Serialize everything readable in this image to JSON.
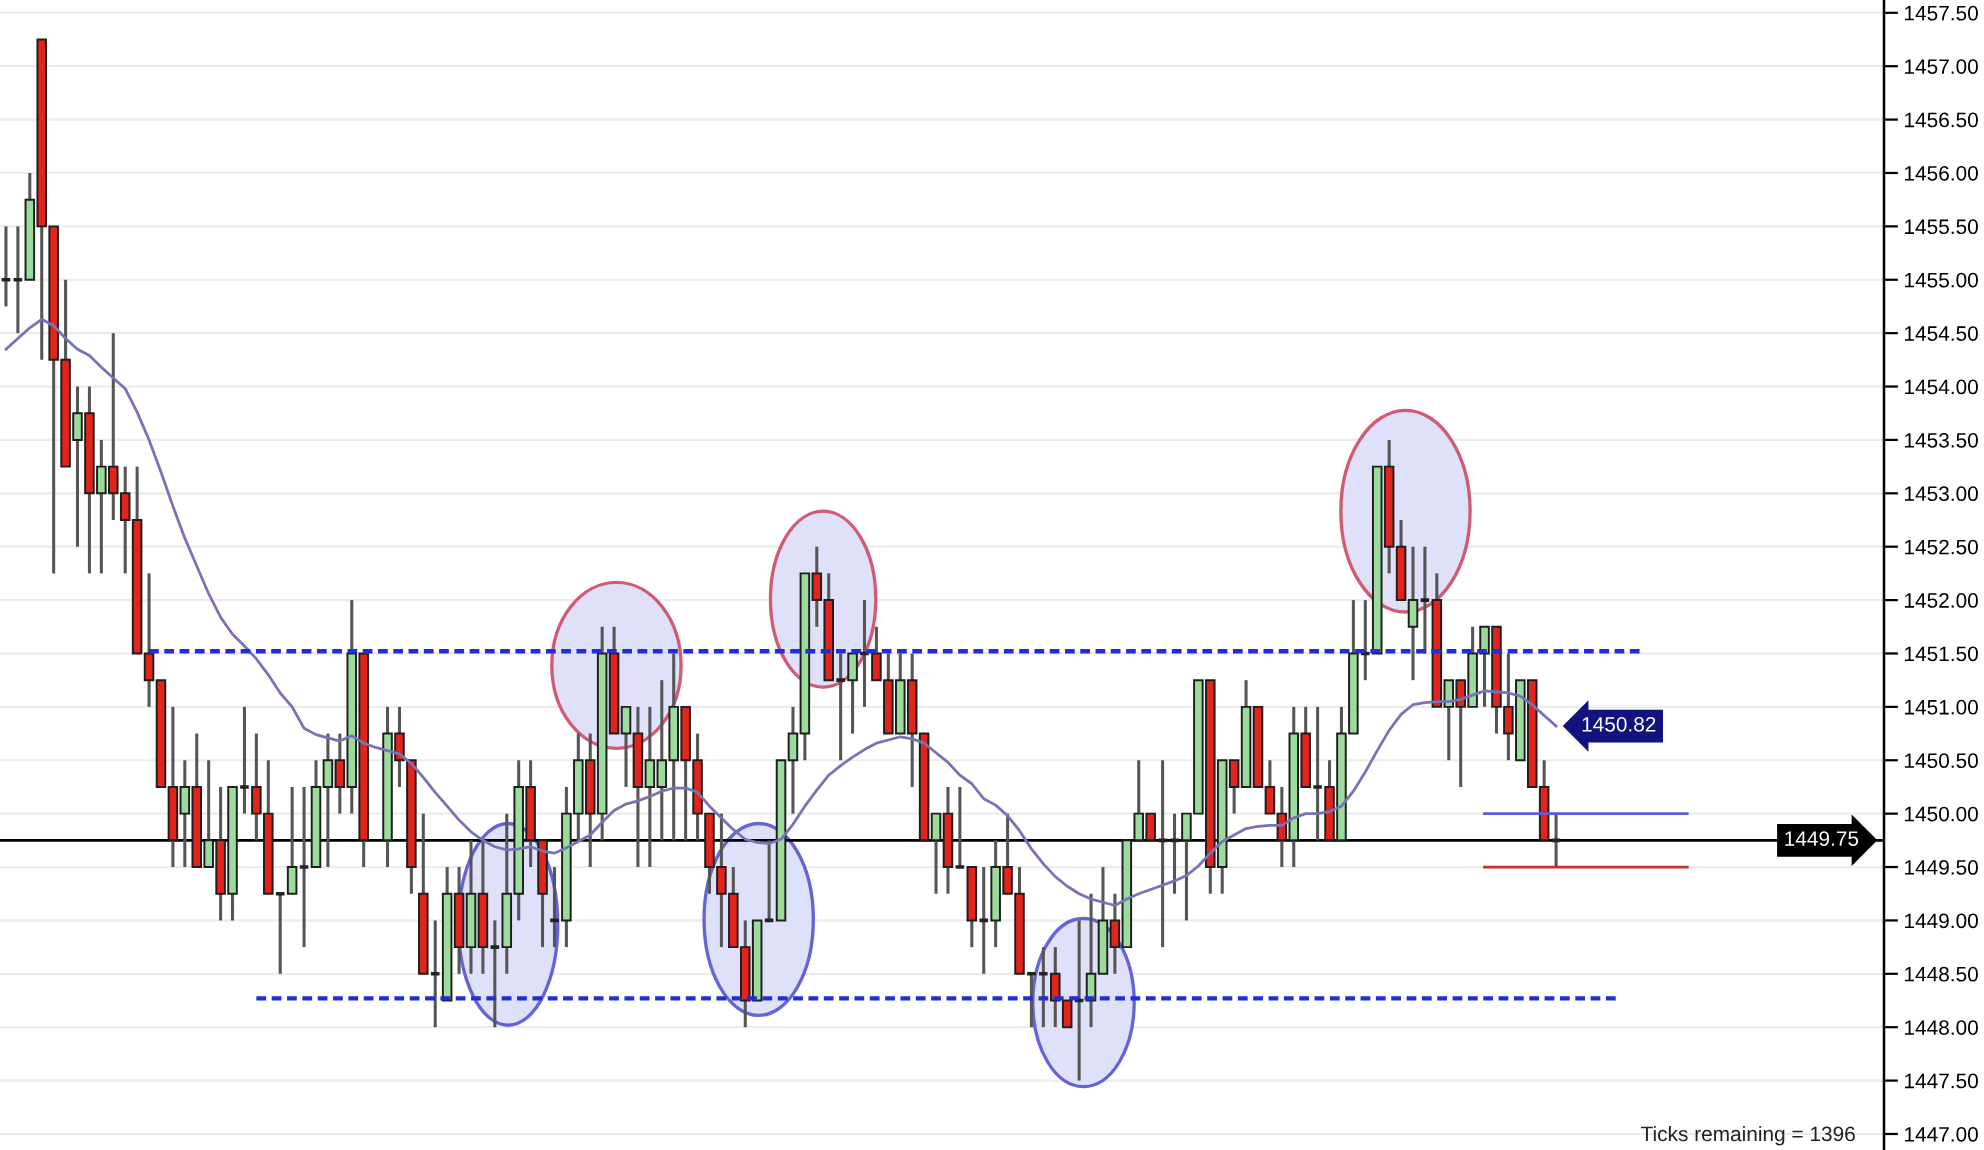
{
  "chart_data": {
    "type": "candlestick",
    "categories": [
      null,
      null,
      null,
      null,
      null,
      null,
      null,
      null,
      null,
      null,
      null,
      null,
      null,
      null,
      null,
      null,
      null,
      null,
      null,
      null,
      null,
      null,
      null,
      null,
      null,
      null,
      null,
      null,
      null,
      null,
      null,
      null,
      null,
      null,
      null,
      null,
      null,
      null,
      null,
      null,
      null,
      null,
      null,
      null,
      null,
      null,
      null,
      null,
      null,
      null,
      null,
      null,
      null,
      null,
      null,
      null,
      null,
      null,
      null,
      null,
      null,
      null,
      null,
      null,
      null,
      null,
      null,
      null,
      null,
      null,
      null,
      null,
      null,
      null,
      null,
      null,
      null,
      null,
      null,
      null,
      null,
      null,
      null,
      null,
      null,
      null,
      null,
      null,
      null,
      null,
      null,
      null,
      null,
      null,
      null,
      null,
      null,
      null,
      null,
      null,
      null,
      null,
      null,
      null,
      null,
      null,
      null,
      null,
      null,
      null,
      null,
      null,
      null,
      null,
      null,
      null,
      null,
      null,
      null,
      null,
      null,
      null,
      null,
      null,
      null,
      null,
      null,
      null,
      null,
      null,
      null,
      null,
      null,
      null,
      null,
      null,
      null,
      null,
      null,
      null,
      null,
      null,
      null,
      null,
      null,
      null,
      null,
      null,
      null,
      null,
      null,
      null,
      null,
      null,
      null,
      null,
      null,
      null
    ],
    "ohlc": [
      [
        1455.0,
        1455.5,
        1454.75,
        1455.0
      ],
      [
        1455.0,
        1455.5,
        1454.5,
        1455.0
      ],
      [
        1455.0,
        1456.0,
        1455.0,
        1455.75
      ],
      [
        1457.25,
        1457.25,
        1454.25,
        1455.5
      ],
      [
        1455.5,
        1455.5,
        1452.25,
        1454.25
      ],
      [
        1454.25,
        1455.0,
        1453.25,
        1453.25
      ],
      [
        1453.5,
        1454.0,
        1452.5,
        1453.75
      ],
      [
        1453.75,
        1454.0,
        1452.25,
        1453.0
      ],
      [
        1453.0,
        1453.5,
        1452.25,
        1453.25
      ],
      [
        1453.25,
        1454.5,
        1452.75,
        1453.0
      ],
      [
        1453.0,
        1453.25,
        1452.25,
        1452.75
      ],
      [
        1452.75,
        1453.25,
        1451.5,
        1451.5
      ],
      [
        1451.5,
        1452.25,
        1451.0,
        1451.25
      ],
      [
        1451.25,
        1451.25,
        1450.25,
        1450.25
      ],
      [
        1450.25,
        1451.0,
        1449.5,
        1449.75
      ],
      [
        1450.0,
        1450.5,
        1449.5,
        1450.25
      ],
      [
        1450.25,
        1450.75,
        1449.5,
        1449.5
      ],
      [
        1449.5,
        1450.5,
        1449.5,
        1449.75
      ],
      [
        1449.75,
        1450.25,
        1449.0,
        1449.25
      ],
      [
        1449.25,
        1450.25,
        1449.0,
        1450.25
      ],
      [
        1450.25,
        1451.0,
        1450.0,
        1450.25
      ],
      [
        1450.25,
        1450.75,
        1449.75,
        1450.0
      ],
      [
        1450.0,
        1450.5,
        1449.25,
        1449.25
      ],
      [
        1449.25,
        1449.25,
        1448.5,
        1449.25
      ],
      [
        1449.25,
        1450.25,
        1449.25,
        1449.5
      ],
      [
        1449.5,
        1450.25,
        1448.75,
        1449.5
      ],
      [
        1449.5,
        1450.5,
        1449.5,
        1450.25
      ],
      [
        1450.25,
        1450.75,
        1449.5,
        1450.5
      ],
      [
        1450.5,
        1450.75,
        1450.0,
        1450.25
      ],
      [
        1450.25,
        1452.0,
        1450.0,
        1451.5
      ],
      [
        1451.5,
        1451.5,
        1449.5,
        1449.75
      ],
      null,
      [
        1449.75,
        1451.0,
        1449.5,
        1450.75
      ],
      [
        1450.75,
        1451.0,
        1450.25,
        1450.5
      ],
      [
        1450.5,
        1450.5,
        1449.25,
        1449.5
      ],
      [
        1449.25,
        1450.0,
        1448.5,
        1448.5
      ],
      [
        1448.5,
        1449.0,
        1448.0,
        1448.5
      ],
      [
        1448.25,
        1449.5,
        1448.25,
        1449.25
      ],
      [
        1449.25,
        1449.5,
        1448.5,
        1448.75
      ],
      [
        1448.75,
        1449.75,
        1448.5,
        1449.25
      ],
      [
        1449.25,
        1449.75,
        1448.5,
        1448.75
      ],
      [
        1448.75,
        1449.0,
        1448.0,
        1448.75
      ],
      [
        1448.75,
        1450.0,
        1448.5,
        1449.25
      ],
      [
        1449.25,
        1450.5,
        1449.0,
        1450.25
      ],
      [
        1450.25,
        1450.5,
        1449.5,
        1449.75
      ],
      [
        1449.75,
        1449.75,
        1448.75,
        1449.25
      ],
      [
        1449.0,
        1449.5,
        1448.75,
        1449.0
      ],
      [
        1449.0,
        1450.25,
        1448.75,
        1450.0
      ],
      [
        1450.0,
        1450.75,
        1449.75,
        1450.5
      ],
      [
        1450.5,
        1450.75,
        1449.5,
        1450.0
      ],
      [
        1450.0,
        1451.75,
        1449.75,
        1451.5
      ],
      [
        1451.5,
        1451.75,
        1450.75,
        1450.75
      ],
      [
        1450.75,
        1451.0,
        1450.25,
        1451.0
      ],
      [
        1450.75,
        1451.0,
        1449.5,
        1450.25
      ],
      [
        1450.25,
        1451.0,
        1449.5,
        1450.5
      ],
      [
        1450.25,
        1451.25,
        1449.75,
        1450.5
      ],
      [
        1450.5,
        1451.5,
        1449.75,
        1451.0
      ],
      [
        1451.0,
        1451.0,
        1449.75,
        1450.5
      ],
      [
        1450.5,
        1450.75,
        1449.75,
        1450.0
      ],
      [
        1450.0,
        1450.0,
        1449.25,
        1449.5
      ],
      [
        1449.5,
        1450.0,
        1448.75,
        1449.25
      ],
      [
        1449.25,
        1449.5,
        1448.75,
        1448.75
      ],
      [
        1448.75,
        1449.0,
        1448.0,
        1448.25
      ],
      [
        1448.25,
        1449.0,
        1448.25,
        1449.0
      ],
      [
        1449.0,
        1449.75,
        1449.0,
        1449.0
      ],
      [
        1449.0,
        1450.5,
        1449.0,
        1450.5
      ],
      [
        1450.5,
        1451.0,
        1450.0,
        1450.75
      ],
      [
        1450.75,
        1452.25,
        1450.5,
        1452.25
      ],
      [
        1452.25,
        1452.5,
        1451.75,
        1452.0
      ],
      [
        1452.0,
        1452.25,
        1451.25,
        1451.25
      ],
      [
        1451.25,
        1451.5,
        1450.5,
        1451.25
      ],
      [
        1451.25,
        1451.5,
        1450.75,
        1451.5
      ],
      [
        1451.5,
        1452.0,
        1451.0,
        1451.5
      ],
      [
        1451.5,
        1451.75,
        1451.25,
        1451.25
      ],
      [
        1451.25,
        1451.5,
        1450.75,
        1450.75
      ],
      [
        1450.75,
        1451.5,
        1450.75,
        1451.25
      ],
      [
        1451.25,
        1451.5,
        1450.25,
        1450.75
      ],
      [
        1450.75,
        1450.75,
        1449.75,
        1449.75
      ],
      [
        1449.75,
        1450.0,
        1449.25,
        1450.0
      ],
      [
        1450.0,
        1450.25,
        1449.25,
        1449.5
      ],
      [
        1449.5,
        1450.25,
        1449.5,
        1449.5
      ],
      [
        1449.5,
        1449.5,
        1448.75,
        1449.0
      ],
      [
        1449.0,
        1449.5,
        1448.5,
        1449.0
      ],
      [
        1449.0,
        1449.75,
        1448.75,
        1449.5
      ],
      [
        1449.5,
        1450.0,
        1449.25,
        1449.25
      ],
      [
        1449.25,
        1449.5,
        1448.5,
        1448.5
      ],
      [
        1448.5,
        1448.5,
        1448.0,
        1448.5
      ],
      [
        1448.5,
        1448.75,
        1448.0,
        1448.5
      ],
      [
        1448.5,
        1448.75,
        1448.0,
        1448.25
      ],
      [
        1448.25,
        1448.25,
        1448.0,
        1448.0
      ],
      [
        1448.25,
        1449.0,
        1447.5,
        1448.25
      ],
      [
        1448.25,
        1449.25,
        1448.0,
        1448.5
      ],
      [
        1448.5,
        1449.5,
        1448.5,
        1449.0
      ],
      [
        1449.0,
        1449.25,
        1448.5,
        1448.75
      ],
      [
        1448.75,
        1449.75,
        1448.75,
        1449.75
      ],
      [
        1449.75,
        1450.5,
        1449.75,
        1450.0
      ],
      [
        1450.0,
        1450.0,
        1449.75,
        1449.75
      ],
      [
        1449.75,
        1450.5,
        1448.75,
        1449.75
      ],
      [
        1449.75,
        1450.0,
        1449.25,
        1449.75
      ],
      [
        1449.75,
        1450.0,
        1449.0,
        1450.0
      ],
      [
        1450.0,
        1451.25,
        1450.0,
        1451.25
      ],
      [
        1451.25,
        1451.25,
        1449.25,
        1449.5
      ],
      [
        1449.5,
        1450.5,
        1449.25,
        1450.5
      ],
      [
        1450.5,
        1450.5,
        1450.0,
        1450.25
      ],
      [
        1450.25,
        1451.25,
        1450.25,
        1451.0
      ],
      [
        1451.0,
        1451.0,
        1450.25,
        1450.25
      ],
      [
        1450.25,
        1450.5,
        1450.0,
        1450.0
      ],
      [
        1450.0,
        1450.25,
        1449.5,
        1449.75
      ],
      [
        1449.75,
        1451.0,
        1449.5,
        1450.75
      ],
      [
        1450.75,
        1451.0,
        1450.25,
        1450.25
      ],
      [
        1450.25,
        1451.0,
        1449.75,
        1450.25
      ],
      [
        1450.25,
        1450.5,
        1449.75,
        1449.75
      ],
      [
        1449.75,
        1451.0,
        1449.75,
        1450.75
      ],
      [
        1450.75,
        1452.0,
        1450.75,
        1451.5
      ],
      [
        1451.5,
        1452.0,
        1451.25,
        1451.5
      ],
      [
        1451.5,
        1453.25,
        1451.5,
        1453.25
      ],
      [
        1453.25,
        1453.5,
        1452.25,
        1452.5
      ],
      [
        1452.5,
        1452.75,
        1452.0,
        1452.0
      ],
      [
        1451.75,
        1452.5,
        1451.25,
        1452.0
      ],
      [
        1452.0,
        1452.5,
        1451.5,
        1452.0
      ],
      [
        1452.0,
        1452.25,
        1451.0,
        1451.0
      ],
      [
        1451.0,
        1451.25,
        1450.5,
        1451.25
      ],
      [
        1451.25,
        1451.25,
        1450.25,
        1451.0
      ],
      [
        1451.0,
        1451.75,
        1451.0,
        1451.5
      ],
      [
        1451.5,
        1451.75,
        1451.0,
        1451.75
      ],
      [
        1451.75,
        1451.75,
        1450.75,
        1451.0
      ],
      [
        1451.0,
        1451.5,
        1450.5,
        1450.75
      ],
      [
        1450.5,
        1451.25,
        1450.5,
        1451.25
      ],
      [
        1451.25,
        1451.25,
        1450.25,
        1450.25
      ],
      [
        1450.25,
        1450.5,
        1449.75,
        1449.75
      ],
      [
        1449.75,
        1450.0,
        1449.5,
        1449.75
      ],
      null,
      null,
      null,
      null,
      null,
      null,
      null,
      null,
      null,
      null,
      null,
      null,
      null,
      null,
      null,
      null,
      null,
      null,
      null,
      null,
      null,
      null,
      null,
      null,
      null,
      null,
      null
    ],
    "colors": [
      "#222222",
      "#222222",
      "#9bdb9b",
      "#e3241b",
      "#e3241b",
      "#e3241b",
      "#9bdb9b",
      "#e3241b",
      "#9bdb9b",
      "#e3241b",
      "#e3241b",
      "#e3241b",
      "#e3241b",
      "#e3241b",
      "#e3241b",
      "#9bdb9b",
      "#e3241b",
      "#9bdb9b",
      "#e3241b",
      "#9bdb9b",
      "#222222",
      "#e3241b",
      "#e3241b",
      "#222222",
      "#9bdb9b",
      "#222222",
      "#9bdb9b",
      "#9bdb9b",
      "#e3241b",
      "#9bdb9b",
      "#e3241b",
      null,
      "#9bdb9b",
      "#e3241b",
      "#e3241b",
      "#e3241b",
      "#222222",
      "#9bdb9b",
      "#e3241b",
      "#9bdb9b",
      "#e3241b",
      "#222222",
      "#9bdb9b",
      "#9bdb9b",
      "#e3241b",
      "#e3241b",
      "#222222",
      "#9bdb9b",
      "#9bdb9b",
      "#e3241b",
      "#9bdb9b",
      "#e3241b",
      "#9bdb9b",
      "#e3241b",
      "#9bdb9b",
      "#9bdb9b",
      "#9bdb9b",
      "#e3241b",
      "#e3241b",
      "#e3241b",
      "#e3241b",
      "#e3241b",
      "#e3241b",
      "#9bdb9b",
      "#222222",
      "#9bdb9b",
      "#9bdb9b",
      "#9bdb9b",
      "#e3241b",
      "#e3241b",
      "#222222",
      "#9bdb9b",
      "#222222",
      "#e3241b",
      "#e3241b",
      "#9bdb9b",
      "#e3241b",
      "#e3241b",
      "#9bdb9b",
      "#e3241b",
      "#222222",
      "#e3241b",
      "#222222",
      "#9bdb9b",
      "#e3241b",
      "#e3241b",
      "#222222",
      "#222222",
      "#e3241b",
      "#e3241b",
      "#222222",
      "#9bdb9b",
      "#9bdb9b",
      "#e3241b",
      "#9bdb9b",
      "#9bdb9b",
      "#e3241b",
      "#222222",
      "#222222",
      "#9bdb9b",
      "#9bdb9b",
      "#e3241b",
      "#9bdb9b",
      "#e3241b",
      "#9bdb9b",
      "#e3241b",
      "#e3241b",
      "#e3241b",
      "#9bdb9b",
      "#e3241b",
      "#222222",
      "#e3241b",
      "#9bdb9b",
      "#9bdb9b",
      "#222222",
      "#9bdb9b",
      "#e3241b",
      "#e3241b",
      "#9bdb9b",
      "#222222",
      "#e3241b",
      "#9bdb9b",
      "#e3241b",
      "#9bdb9b",
      "#9bdb9b",
      "#e3241b",
      "#e3241b",
      "#9bdb9b",
      "#e3241b",
      "#e3241b",
      "#222222",
      null,
      null,
      null,
      null,
      null,
      null,
      null,
      null,
      null,
      null,
      null,
      null,
      null,
      null,
      null,
      null,
      null,
      null,
      null,
      null,
      null,
      null,
      null,
      null,
      null,
      null,
      null
    ],
    "series": [
      {
        "type": "line",
        "color": "#7474b6",
        "values": [
          1454.35,
          1454.45,
          1454.55,
          1454.63,
          1454.57,
          1454.45,
          1454.35,
          1454.29,
          1454.18,
          1454.08,
          1453.98,
          1453.76,
          1453.5,
          1453.2,
          1452.88,
          1452.58,
          1452.32,
          1452.06,
          1451.84,
          1451.68,
          1451.57,
          1451.45,
          1451.3,
          1451.13,
          1451.0,
          1450.8,
          1450.74,
          1450.71,
          1450.68,
          1450.73,
          1450.66,
          1450.62,
          1450.59,
          1450.56,
          1450.47,
          1450.34,
          1450.2,
          1450.07,
          1449.94,
          1449.83,
          1449.75,
          1449.69,
          1449.66,
          1449.67,
          1449.69,
          1449.65,
          1449.63,
          1449.68,
          1449.74,
          1449.8,
          1449.92,
          1450.03,
          1450.09,
          1450.12,
          1450.16,
          1450.21,
          1450.24,
          1450.24,
          1450.2,
          1450.07,
          1449.96,
          1449.85,
          1449.76,
          1449.73,
          1449.72,
          1449.76,
          1449.9,
          1450.07,
          1450.22,
          1450.36,
          1450.45,
          1450.53,
          1450.6,
          1450.66,
          1450.69,
          1450.72,
          1450.7,
          1450.66,
          1450.57,
          1450.48,
          1450.36,
          1450.28,
          1450.14,
          1450.08,
          1449.98,
          1449.84,
          1449.67,
          1449.53,
          1449.41,
          1449.32,
          1449.25,
          1449.2,
          1449.17,
          1449.14,
          1449.2,
          1449.25,
          1449.29,
          1449.33,
          1449.37,
          1449.42,
          1449.51,
          1449.63,
          1449.74,
          1449.8,
          1449.86,
          1449.88,
          1449.89,
          1449.89,
          1449.96,
          1450.0,
          1450.0,
          1450.02,
          1450.07,
          1450.21,
          1450.39,
          1450.59,
          1450.78,
          1450.93,
          1451.02,
          1451.04,
          1451.05,
          1451.05,
          1451.07,
          1451.11,
          1451.15,
          1451.14,
          1451.13,
          1451.1,
          1451.02,
          1450.92,
          1450.82,
          null,
          null,
          null,
          null,
          null,
          null,
          null,
          null,
          null,
          null,
          null,
          null,
          null,
          null,
          null,
          null,
          null,
          null,
          null,
          null,
          null,
          null,
          null,
          null,
          null,
          null,
          null
        ],
        "value_labels": [
          null,
          null,
          null,
          null,
          null,
          null,
          null,
          null,
          null,
          null,
          null,
          null,
          null,
          null,
          null,
          null,
          null,
          null,
          null,
          null,
          null,
          null,
          null,
          null,
          null,
          null,
          null,
          null,
          null,
          null,
          null,
          null,
          null,
          null,
          null,
          null,
          null,
          null,
          null,
          null,
          null,
          null,
          null,
          null,
          null,
          null,
          null,
          null,
          null,
          null,
          null,
          null,
          null,
          null,
          null,
          null,
          null,
          null,
          null,
          null,
          null,
          null,
          null,
          null,
          null,
          null,
          null,
          null,
          null,
          null,
          null,
          null,
          null,
          null,
          null,
          null,
          null,
          null,
          null,
          null,
          null,
          null,
          null,
          null,
          null,
          null,
          null,
          null,
          null,
          null,
          null,
          null,
          null,
          null,
          null,
          null,
          null,
          null,
          null,
          null,
          null,
          null,
          null,
          null,
          null,
          null,
          null,
          null,
          null,
          null,
          null,
          null,
          null,
          null,
          null,
          null,
          null,
          null,
          null,
          null,
          null,
          null,
          null,
          null,
          null,
          null,
          null,
          null,
          null,
          null,
          "1450.82",
          null,
          null,
          null,
          null,
          null,
          null,
          null,
          null,
          null,
          null,
          null,
          null,
          null,
          null,
          null,
          null,
          null,
          null,
          null,
          null,
          null,
          null,
          null,
          null,
          null,
          null,
          null
        ]
      },
      {
        "type": "line",
        "color": "#1f2fd8",
        "line_style": "dashed",
        "values": [
          null,
          null,
          null,
          null,
          null,
          null,
          null,
          null,
          null,
          null,
          null,
          null,
          1451.52,
          1451.52,
          1451.52,
          1451.52,
          1451.52,
          1451.52,
          1451.52,
          1451.52,
          1451.52,
          1451.52,
          1451.52,
          1451.52,
          1451.52,
          1451.52,
          1451.52,
          1451.52,
          1451.52,
          1451.52,
          1451.52,
          1451.52,
          1451.52,
          1451.52,
          1451.52,
          1451.52,
          1451.52,
          1451.52,
          1451.52,
          1451.52,
          1451.52,
          1451.52,
          1451.52,
          1451.52,
          1451.52,
          1451.52,
          1451.52,
          1451.52,
          1451.52,
          1451.52,
          1451.52,
          1451.52,
          1451.52,
          1451.52,
          1451.52,
          1451.52,
          1451.52,
          1451.52,
          1451.52,
          1451.52,
          1451.52,
          1451.52,
          1451.52,
          1451.52,
          1451.52,
          1451.52,
          1451.52,
          1451.52,
          1451.52,
          1451.52,
          1451.52,
          1451.52,
          1451.52,
          1451.52,
          1451.52,
          1451.52,
          1451.52,
          1451.52,
          1451.52,
          1451.52,
          1451.52,
          1451.52,
          1451.52,
          1451.52,
          1451.52,
          1451.52,
          1451.52,
          1451.52,
          1451.52,
          1451.52,
          1451.52,
          1451.52,
          1451.52,
          1451.52,
          1451.52,
          1451.52,
          1451.52,
          1451.52,
          1451.52,
          1451.52,
          1451.52,
          1451.52,
          1451.52,
          1451.52,
          1451.52,
          1451.52,
          1451.52,
          1451.52,
          1451.52,
          1451.52,
          1451.52,
          1451.52,
          1451.52,
          1451.52,
          1451.52,
          1451.52,
          1451.52,
          1451.52,
          1451.52,
          1451.52,
          1451.52,
          1451.52,
          1451.52,
          1451.52,
          1451.52,
          1451.52,
          1451.52,
          1451.52,
          1451.52,
          1451.52,
          1451.52,
          1451.52,
          1451.52,
          1451.52,
          1451.52,
          1451.52,
          1451.52,
          1451.52,
          null,
          null,
          null,
          null,
          null,
          null,
          null,
          null,
          null,
          null,
          null,
          null,
          null,
          null,
          null,
          null,
          null,
          null,
          null,
          null
        ]
      },
      {
        "type": "line",
        "color": "#1f2fd8",
        "line_style": "dashed",
        "values": [
          null,
          null,
          null,
          null,
          null,
          null,
          null,
          null,
          null,
          null,
          null,
          null,
          null,
          null,
          null,
          null,
          null,
          null,
          null,
          null,
          null,
          1448.27,
          1448.27,
          1448.27,
          1448.27,
          1448.27,
          1448.27,
          1448.27,
          1448.27,
          1448.27,
          1448.27,
          1448.27,
          1448.27,
          1448.27,
          1448.27,
          1448.27,
          1448.27,
          1448.27,
          1448.27,
          1448.27,
          1448.27,
          1448.27,
          1448.27,
          1448.27,
          1448.27,
          1448.27,
          1448.27,
          1448.27,
          1448.27,
          1448.27,
          1448.27,
          1448.27,
          1448.27,
          1448.27,
          1448.27,
          1448.27,
          1448.27,
          1448.27,
          1448.27,
          1448.27,
          1448.27,
          1448.27,
          1448.27,
          1448.27,
          1448.27,
          1448.27,
          1448.27,
          1448.27,
          1448.27,
          1448.27,
          1448.27,
          1448.27,
          1448.27,
          1448.27,
          1448.27,
          1448.27,
          1448.27,
          1448.27,
          1448.27,
          1448.27,
          1448.27,
          1448.27,
          1448.27,
          1448.27,
          1448.27,
          1448.27,
          1448.27,
          1448.27,
          1448.27,
          1448.27,
          1448.27,
          1448.27,
          1448.27,
          1448.27,
          1448.27,
          1448.27,
          1448.27,
          1448.27,
          1448.27,
          1448.27,
          1448.27,
          1448.27,
          1448.27,
          1448.27,
          1448.27,
          1448.27,
          1448.27,
          1448.27,
          1448.27,
          1448.27,
          1448.27,
          1448.27,
          1448.27,
          1448.27,
          1448.27,
          1448.27,
          1448.27,
          1448.27,
          1448.27,
          1448.27,
          1448.27,
          1448.27,
          1448.27,
          1448.27,
          1448.27,
          1448.27,
          1448.27,
          1448.27,
          1448.27,
          1448.27,
          1448.27,
          1448.27,
          1448.27,
          1448.27,
          1448.27,
          1448.27,
          null,
          null,
          null,
          null,
          null,
          null,
          null,
          null,
          null,
          null,
          null,
          null,
          null,
          null,
          null,
          null,
          null,
          null,
          null,
          null,
          null,
          null
        ]
      },
      {
        "type": "line",
        "color": "#5b5bd8",
        "values": [
          null,
          null,
          null,
          null,
          null,
          null,
          null,
          null,
          null,
          null,
          null,
          null,
          null,
          null,
          null,
          null,
          null,
          null,
          null,
          null,
          null,
          null,
          null,
          null,
          null,
          null,
          null,
          null,
          null,
          null,
          null,
          null,
          null,
          null,
          null,
          null,
          null,
          null,
          null,
          null,
          null,
          null,
          null,
          null,
          null,
          null,
          null,
          null,
          null,
          null,
          null,
          null,
          null,
          null,
          null,
          null,
          null,
          null,
          null,
          null,
          null,
          null,
          null,
          null,
          null,
          null,
          null,
          null,
          null,
          null,
          null,
          null,
          null,
          null,
          null,
          null,
          null,
          null,
          null,
          null,
          null,
          null,
          null,
          null,
          null,
          null,
          null,
          null,
          null,
          null,
          null,
          null,
          null,
          null,
          null,
          null,
          null,
          null,
          null,
          null,
          null,
          null,
          null,
          null,
          null,
          null,
          null,
          null,
          null,
          null,
          null,
          null,
          null,
          null,
          null,
          null,
          null,
          null,
          null,
          null,
          null,
          null,
          null,
          null,
          1450.0,
          1450.0,
          1450.0,
          1450.0,
          1450.0,
          1450.0,
          1450.0,
          1450.0,
          1450.0,
          1450.0,
          1450.0,
          1450.0,
          1450.0,
          1450.0,
          1450.0,
          1450.0,
          1450.0,
          1450.0,
          null,
          null,
          null,
          null,
          null,
          null,
          null,
          null,
          null,
          null,
          null,
          null,
          null,
          null,
          null,
          null
        ]
      },
      {
        "type": "line",
        "color": "#c8302a",
        "values": [
          null,
          null,
          null,
          null,
          null,
          null,
          null,
          null,
          null,
          null,
          null,
          null,
          null,
          null,
          null,
          null,
          null,
          null,
          null,
          null,
          null,
          null,
          null,
          null,
          null,
          null,
          null,
          null,
          null,
          null,
          null,
          null,
          null,
          null,
          null,
          null,
          null,
          null,
          null,
          null,
          null,
          null,
          null,
          null,
          null,
          null,
          null,
          null,
          null,
          null,
          null,
          null,
          null,
          null,
          null,
          null,
          null,
          null,
          null,
          null,
          null,
          null,
          null,
          null,
          null,
          null,
          null,
          null,
          null,
          null,
          null,
          null,
          null,
          null,
          null,
          null,
          null,
          null,
          null,
          null,
          null,
          null,
          null,
          null,
          null,
          null,
          null,
          null,
          null,
          null,
          null,
          null,
          null,
          null,
          null,
          null,
          null,
          null,
          null,
          null,
          null,
          null,
          null,
          null,
          null,
          null,
          null,
          null,
          null,
          null,
          null,
          null,
          null,
          null,
          null,
          null,
          null,
          null,
          null,
          null,
          null,
          null,
          null,
          null,
          1449.5,
          1449.5,
          1449.5,
          1449.5,
          1449.5,
          1449.5,
          1449.5,
          1449.5,
          1449.5,
          1449.5,
          1449.5,
          1449.5,
          1449.5,
          1449.5,
          1449.5,
          1449.5,
          1449.5,
          1449.5,
          null,
          null,
          null,
          null,
          null,
          null,
          null,
          null,
          null,
          null,
          null,
          null,
          null,
          null,
          null,
          null
        ]
      }
    ],
    "ylim": [
      1446.85,
      1457.62
    ],
    "yticks": [
      {
        "value": 1447.0,
        "label": "1447.00"
      },
      {
        "value": 1447.5,
        "label": "1447.50"
      },
      {
        "value": 1448.0,
        "label": "1448.00"
      },
      {
        "value": 1448.5,
        "label": "1448.50"
      },
      {
        "value": 1449.0,
        "label": "1449.00"
      },
      {
        "value": 1449.5,
        "label": "1449.50"
      },
      {
        "value": 1450.0,
        "label": "1450.00"
      },
      {
        "value": 1450.5,
        "label": "1450.50"
      },
      {
        "value": 1451.0,
        "label": "1451.00"
      },
      {
        "value": 1451.5,
        "label": "1451.50"
      },
      {
        "value": 1452.0,
        "label": "1452.00"
      },
      {
        "value": 1452.5,
        "label": "1452.50"
      },
      {
        "value": 1453.0,
        "label": "1453.00"
      },
      {
        "value": 1453.5,
        "label": "1453.50"
      },
      {
        "value": 1454.0,
        "label": "1454.00"
      },
      {
        "value": 1454.5,
        "label": "1454.50"
      },
      {
        "value": 1455.0,
        "label": "1455.00"
      },
      {
        "value": 1455.5,
        "label": "1455.50"
      },
      {
        "value": 1456.0,
        "label": "1456.00"
      },
      {
        "value": 1456.5,
        "label": "1456.50"
      },
      {
        "value": 1457.0,
        "label": "1457.00"
      },
      {
        "value": 1457.5,
        "label": "1457.50"
      }
    ],
    "ref_lines": [
      {
        "axis": "y",
        "value": 1449.75,
        "label": "1449.75",
        "color": "#000000"
      }
    ],
    "annotations": [
      "Ticks remaining = 1396"
    ],
    "grid": "y",
    "tick_labels": "y"
  }
}
